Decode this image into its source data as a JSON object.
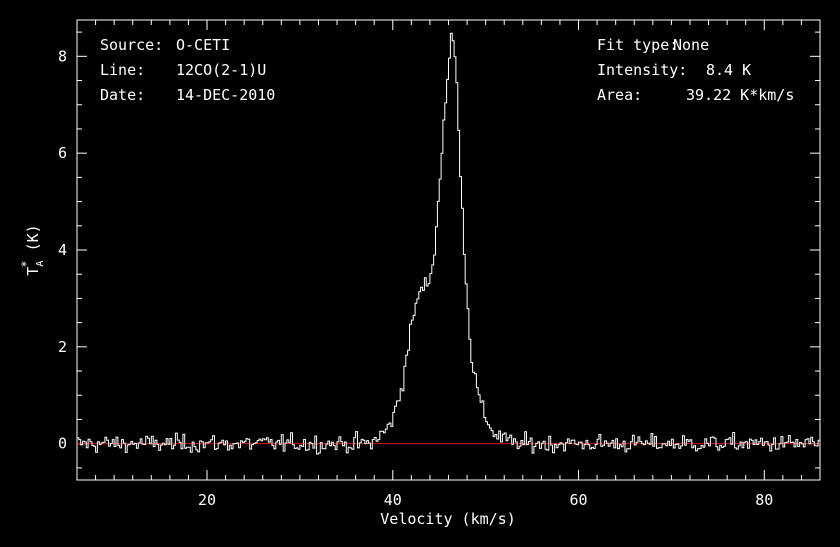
{
  "colors": {
    "background": "#000000",
    "foreground": "#ffffff",
    "baseline": "#dd1111"
  },
  "info_left": [
    {
      "label": "Source:",
      "value": "O-CETI"
    },
    {
      "label": "Line:",
      "value": "12CO(2-1)U"
    },
    {
      "label": "Date:",
      "value": "14-DEC-2010"
    }
  ],
  "info_right": [
    {
      "label": "Fit type:",
      "value": "None"
    },
    {
      "label": "Intensity:",
      "value": "8.4 K"
    },
    {
      "label": "Area:",
      "value": "39.22 K*km/s"
    }
  ],
  "chart_data": {
    "type": "line",
    "style": "step histogram",
    "xlabel": "Velocity (km/s)",
    "ylabel": "T_A^* (K)",
    "ylabel_parts": {
      "base": "T",
      "sup": "*",
      "sub": "A",
      "unit": "(K)"
    },
    "xlim": [
      6,
      86
    ],
    "ylim": [
      -0.75,
      8.75
    ],
    "xticks": [
      20,
      40,
      60,
      80
    ],
    "yticks": [
      0,
      2,
      4,
      6,
      8
    ],
    "grid": false,
    "baseline": 0,
    "series": [
      {
        "x": [
          38,
          39,
          40,
          41,
          42,
          42.5,
          43,
          43.5,
          44,
          44.5,
          45,
          45.5,
          46,
          46.3,
          46.5,
          46.8,
          47,
          47.5,
          48,
          48.5,
          49,
          49.5,
          50,
          50.5,
          51,
          52,
          53
        ],
        "y": [
          0.1,
          0.2,
          0.5,
          1.2,
          2.4,
          2.9,
          3.15,
          3.25,
          3.4,
          4.0,
          5.2,
          6.7,
          7.7,
          8.4,
          8.3,
          7.8,
          7.0,
          4.8,
          3.0,
          1.8,
          1.2,
          0.8,
          0.55,
          0.35,
          0.2,
          0.1,
          0.0
        ]
      }
    ],
    "noise_rms": 0.09
  }
}
